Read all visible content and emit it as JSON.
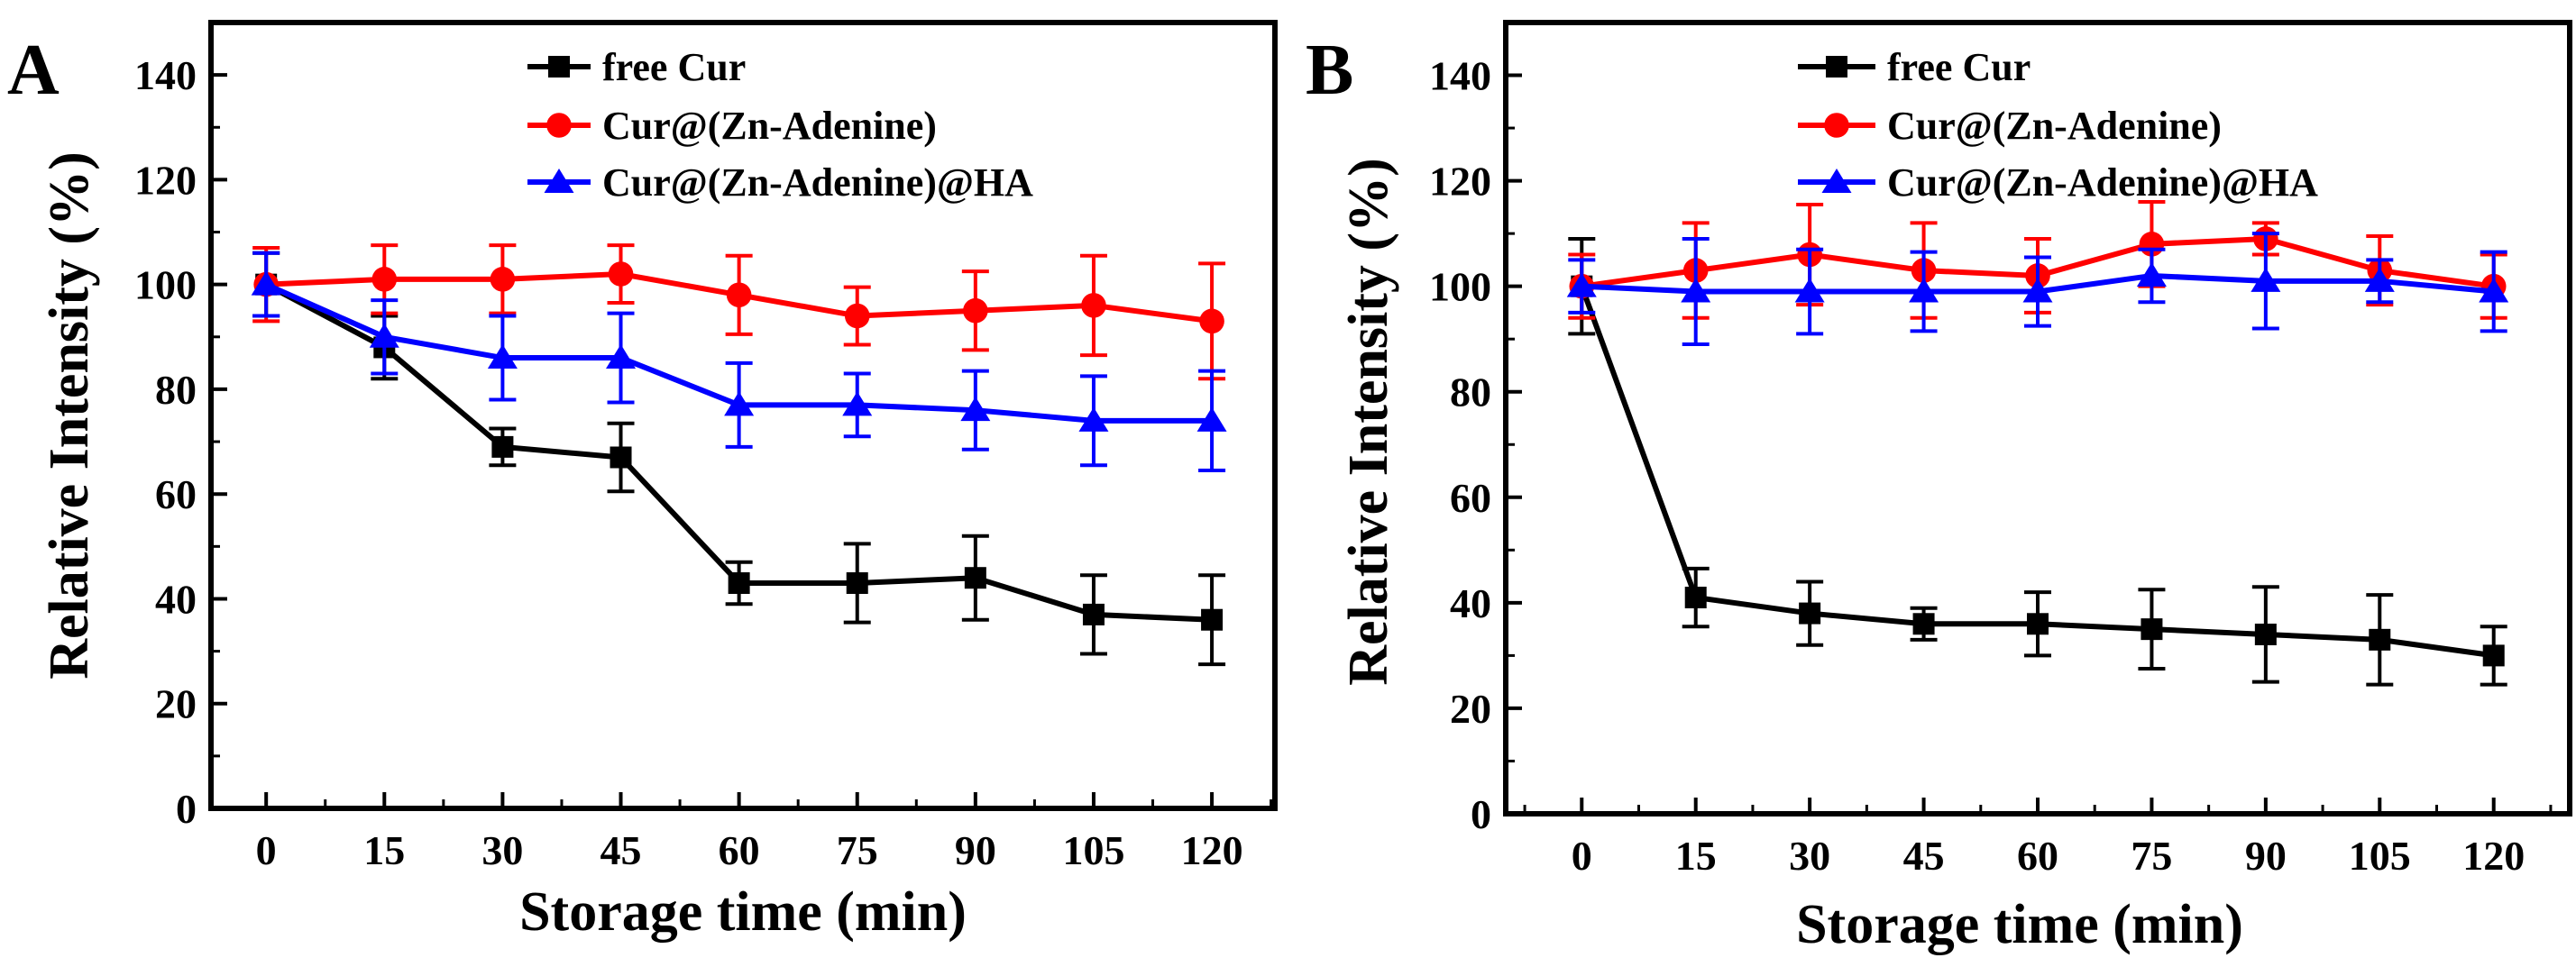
{
  "chart_data": [
    {
      "type": "line",
      "panel_label": "A",
      "xlabel": "Storage time (min)",
      "ylabel": "Relative Intensity (%)",
      "x": [
        0,
        15,
        30,
        45,
        60,
        75,
        90,
        105,
        120
      ],
      "x_tick_labels": [
        "0",
        "15",
        "30",
        "45",
        "60",
        "75",
        "90",
        "105",
        "120"
      ],
      "y_tick_labels": [
        "0",
        "20",
        "40",
        "60",
        "80",
        "100",
        "120",
        "140"
      ],
      "ylim": [
        0,
        150
      ],
      "xlim": [
        -7,
        128
      ],
      "legend_position": "top-center",
      "series": [
        {
          "name": "free Cur",
          "color": "#000000",
          "marker": "square",
          "values": [
            100,
            88,
            69,
            67,
            43,
            43,
            44,
            37,
            36
          ],
          "errors": [
            6,
            6,
            3.5,
            6.5,
            4,
            7.5,
            8,
            7.5,
            8.5
          ]
        },
        {
          "name": "Cur@(Zn-Adenine)",
          "color": "#ff0000",
          "marker": "circle",
          "values": [
            100,
            101,
            101,
            102,
            98,
            94,
            95,
            96,
            93
          ],
          "errors": [
            7,
            6.5,
            6.5,
            5.5,
            7.5,
            5.5,
            7.5,
            9.5,
            11
          ]
        },
        {
          "name": "Cur@(Zn-Adenine)@HA",
          "color": "#0000ff",
          "marker": "triangle",
          "values": [
            100,
            90,
            86,
            86,
            77,
            77,
            76,
            74,
            74
          ],
          "errors": [
            6,
            7,
            8,
            8.5,
            8,
            6,
            7.5,
            8.5,
            9.5
          ]
        }
      ]
    },
    {
      "type": "line",
      "panel_label": "B",
      "xlabel": "Storage time (min)",
      "ylabel": "Relative Intensity (%)",
      "x": [
        0,
        15,
        30,
        45,
        60,
        75,
        90,
        105,
        120
      ],
      "x_tick_labels": [
        "0",
        "15",
        "30",
        "45",
        "60",
        "75",
        "90",
        "105",
        "120"
      ],
      "y_tick_labels": [
        "0",
        "20",
        "40",
        "60",
        "80",
        "100",
        "120",
        "140"
      ],
      "ylim": [
        0,
        150
      ],
      "xlim": [
        -10,
        130
      ],
      "legend_position": "top-center",
      "series": [
        {
          "name": "free Cur",
          "color": "#000000",
          "marker": "square",
          "values": [
            100,
            41,
            38,
            36,
            36,
            35,
            34,
            33,
            30
          ],
          "errors": [
            9,
            5.5,
            6,
            3,
            6,
            7.5,
            9,
            8.5,
            5.5
          ]
        },
        {
          "name": "Cur@(Zn-Adenine)",
          "color": "#ff0000",
          "marker": "circle",
          "values": [
            100,
            103,
            106,
            103,
            102,
            108,
            109,
            103,
            100
          ],
          "errors": [
            6,
            9,
            9.5,
            9,
            7,
            8,
            3,
            6.5,
            6
          ]
        },
        {
          "name": "Cur@(Zn-Adenine)@HA",
          "color": "#0000ff",
          "marker": "triangle",
          "values": [
            100,
            99,
            99,
            99,
            99,
            102,
            101,
            101,
            99
          ],
          "errors": [
            5,
            10,
            8,
            7.5,
            6.5,
            5,
            9,
            4,
            7.5
          ]
        }
      ]
    }
  ]
}
